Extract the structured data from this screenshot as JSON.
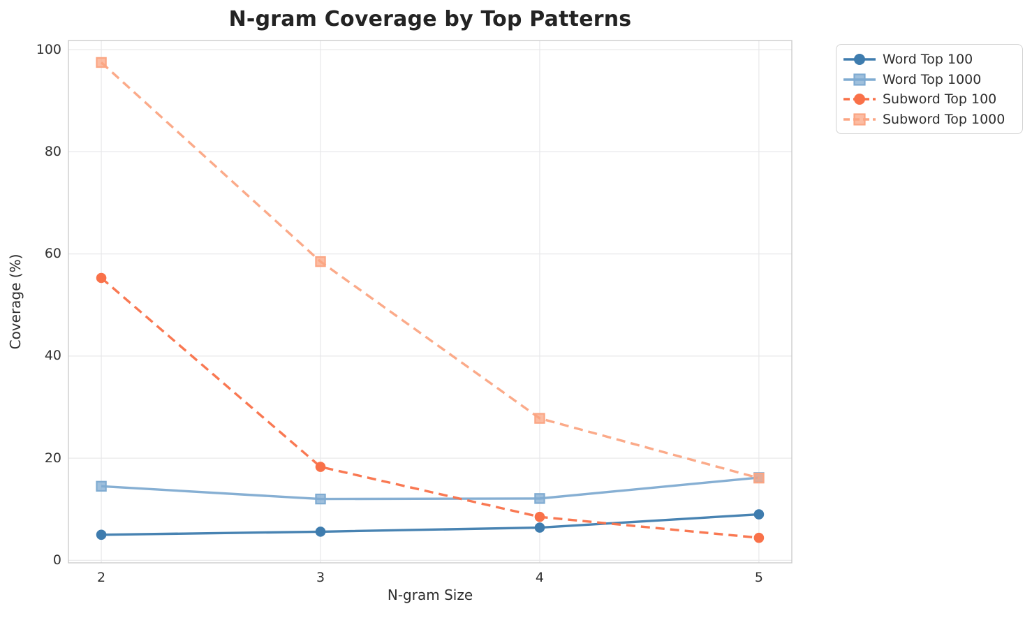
{
  "title": "N-gram Coverage by Top Patterns",
  "chart_data": {
    "type": "line",
    "title": "N-gram Coverage by Top Patterns",
    "xlabel": "N-gram Size",
    "ylabel": "Coverage (%)",
    "x": [
      2,
      3,
      4,
      5
    ],
    "xticks": [
      2,
      3,
      4,
      5
    ],
    "yticks": [
      0,
      20,
      40,
      60,
      80,
      100
    ],
    "xlim": [
      1.85,
      5.15
    ],
    "ylim": [
      -0.5,
      101.8
    ],
    "grid": true,
    "legend_position": "upper right, outside axes",
    "series": [
      {
        "name": "Word Top 100",
        "color": "#3e7cae",
        "marker": "circle",
        "linestyle": "solid",
        "values": [
          5.0,
          5.6,
          6.4,
          9.0
        ]
      },
      {
        "name": "Word Top 1000",
        "color": "#7fabd1",
        "marker": "square",
        "linestyle": "solid",
        "values": [
          14.5,
          12.0,
          12.1,
          16.2
        ]
      },
      {
        "name": "Subword Top 100",
        "color": "#f97149",
        "marker": "circle",
        "linestyle": "dashed",
        "values": [
          55.3,
          18.3,
          8.5,
          4.4
        ]
      },
      {
        "name": "Subword Top 1000",
        "color": "#fba583",
        "marker": "square",
        "linestyle": "dashed",
        "values": [
          97.5,
          58.5,
          27.8,
          16.1
        ]
      }
    ]
  },
  "style": {
    "grid_color": "#e8e8ea",
    "spine_color": "#cccccc",
    "background": "#ffffff",
    "text_color": "#2e2e2e"
  }
}
